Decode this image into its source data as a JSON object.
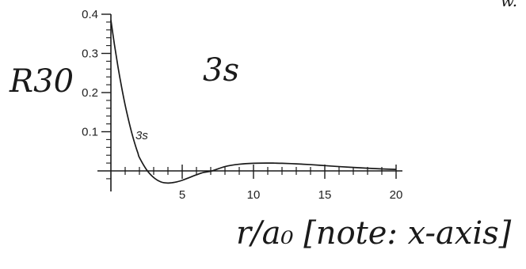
{
  "chart_data": {
    "type": "line",
    "title": "3s",
    "ylabel": "R30",
    "xlabel": "r/a₀ [note: x-axis]",
    "xlim": [
      0,
      20
    ],
    "ylim": [
      -0.03,
      0.4
    ],
    "x_ticks": [
      {
        "value": 5,
        "label": "5"
      },
      {
        "value": 10,
        "label": "10"
      },
      {
        "value": 15,
        "label": "15"
      },
      {
        "value": 20,
        "label": "20"
      }
    ],
    "y_ticks": [
      {
        "value": 0.1,
        "label": "0.1"
      },
      {
        "value": 0.2,
        "label": "0.2"
      },
      {
        "value": 0.3,
        "label": "0.3"
      },
      {
        "value": 0.4,
        "label": "0.4"
      }
    ],
    "series": [
      {
        "name": "3s",
        "x": [
          0,
          0.25,
          0.5,
          0.75,
          1,
          1.25,
          1.5,
          1.75,
          1.9,
          2,
          2.5,
          3,
          3.5,
          4,
          4.5,
          5,
          5.5,
          6,
          6.5,
          7.1,
          8,
          9,
          10,
          11,
          11.5,
          12,
          13,
          14,
          15,
          16,
          17,
          18,
          19,
          20
        ],
        "y": [
          0.385,
          0.322,
          0.265,
          0.214,
          0.168,
          0.128,
          0.092,
          0.061,
          0.045,
          0.034,
          0.003,
          -0.017,
          -0.028,
          -0.031,
          -0.029,
          -0.024,
          -0.017,
          -0.01,
          -0.004,
          0.0,
          0.011,
          0.017,
          0.0195,
          0.02,
          0.0198,
          0.0194,
          0.018,
          0.016,
          0.0135,
          0.011,
          0.0088,
          0.0068,
          0.0051,
          0.0038
        ]
      }
    ],
    "grid": false
  },
  "page_corner_mark": "w."
}
